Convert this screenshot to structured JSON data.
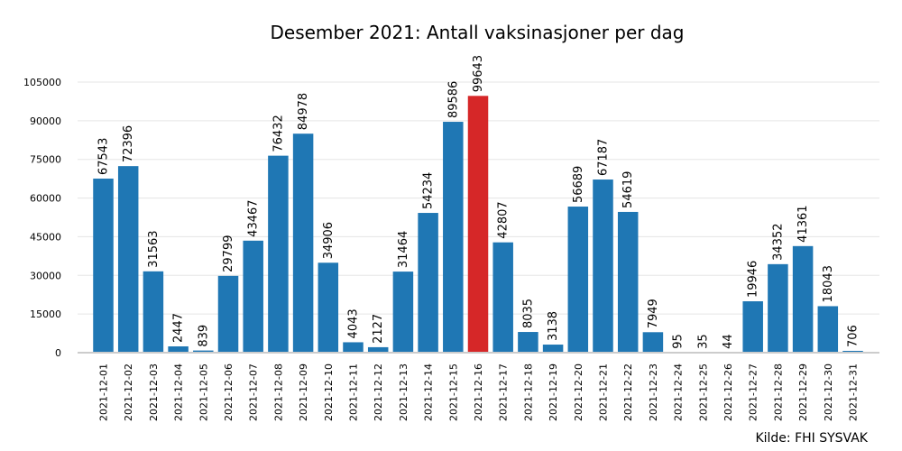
{
  "chart_data": {
    "type": "bar",
    "title": "Desember 2021: Antall vaksinasjoner per dag",
    "xlabel": "",
    "ylabel": "",
    "source": "Kilde: FHI SYSVAK",
    "ylim": [
      0,
      105000
    ],
    "yticks": [
      0,
      15000,
      30000,
      45000,
      60000,
      75000,
      90000,
      105000
    ],
    "grid": true,
    "bar_color": "#1f77b4",
    "highlight_color": "#d62728",
    "highlight_index": 15,
    "categories": [
      "2021-12-01",
      "2021-12-02",
      "2021-12-03",
      "2021-12-04",
      "2021-12-05",
      "2021-12-06",
      "2021-12-07",
      "2021-12-08",
      "2021-12-09",
      "2021-12-10",
      "2021-12-11",
      "2021-12-12",
      "2021-12-13",
      "2021-12-14",
      "2021-12-15",
      "2021-12-16",
      "2021-12-17",
      "2021-12-18",
      "2021-12-19",
      "2021-12-20",
      "2021-12-21",
      "2021-12-22",
      "2021-12-23",
      "2021-12-24",
      "2021-12-25",
      "2021-12-26",
      "2021-12-27",
      "2021-12-28",
      "2021-12-29",
      "2021-12-30",
      "2021-12-31"
    ],
    "values": [
      67543,
      72396,
      31563,
      2447,
      839,
      29799,
      43467,
      76432,
      84978,
      34906,
      4043,
      2127,
      31464,
      54234,
      89586,
      99643,
      42807,
      8035,
      3138,
      56689,
      67187,
      54619,
      7949,
      95,
      35,
      44,
      19946,
      34352,
      41361,
      18043,
      706
    ]
  }
}
